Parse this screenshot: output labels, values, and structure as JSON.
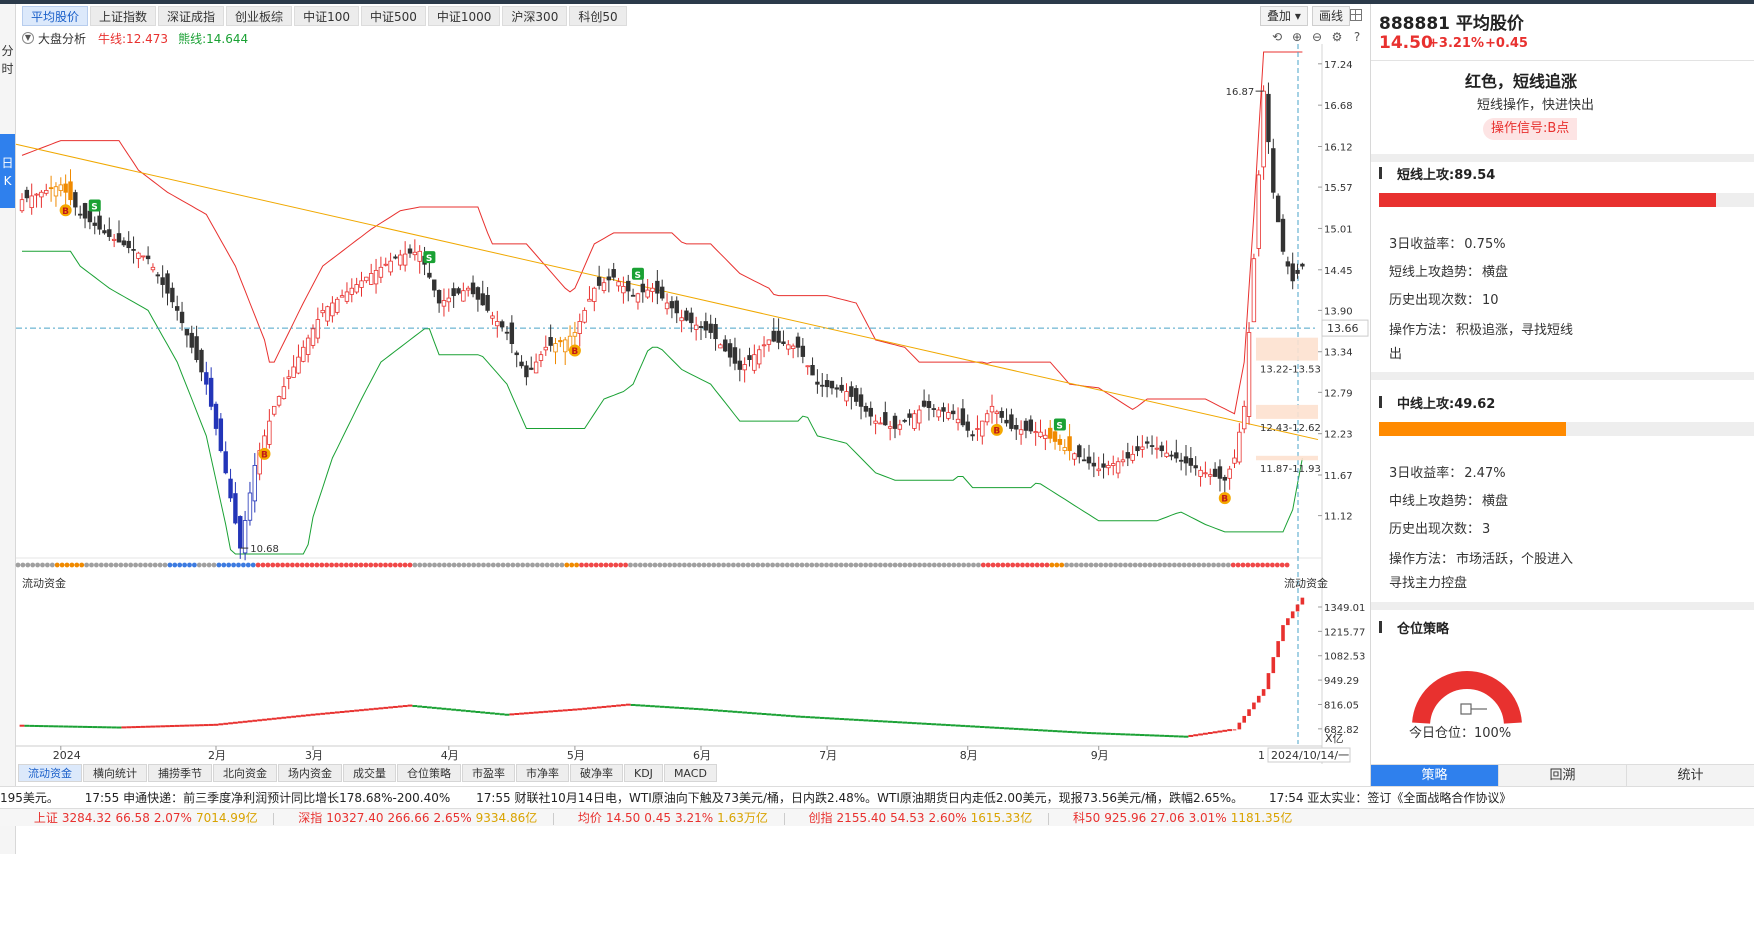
{
  "left_strip": {
    "minute_label": "分时",
    "daily_label": "日K"
  },
  "tabs": [
    "平均股价",
    "上证指数",
    "深证成指",
    "创业板综",
    "中证100",
    "中证500",
    "中证1000",
    "沪深300",
    "科创50"
  ],
  "toolbar": {
    "overlay_label": "叠加",
    "draw_label": "画线"
  },
  "indicator": {
    "name": "大盘分析",
    "bull_line": "牛线:12.473",
    "bear_line": "熊线:14.644"
  },
  "price_axis": [
    "17.24",
    "16.68",
    "16.12",
    "15.57",
    "15.01",
    "14.45",
    "13.90",
    "13.34",
    "12.79",
    "12.23",
    "11.67",
    "11.12"
  ],
  "current_price_tag": "13.66",
  "annotations": {
    "high_label": "16.87",
    "low_label": "10.68",
    "zone_top": "13.22-13.53",
    "zone_mid": "12.43-12.62",
    "zone_low": "11.87-11.93"
  },
  "flow_panel": {
    "title": "流动资金",
    "right_title": "流动资金",
    "axis": [
      "1349.01",
      "1215.77",
      "1082.53",
      "949.29",
      "816.05",
      "682.82"
    ],
    "unit": "X亿"
  },
  "date_axis": [
    "2024",
    "2月",
    "3月",
    "4月",
    "5月",
    "6月",
    "7月",
    "8月",
    "9月"
  ],
  "date_axis_right": [
    "1",
    "2024/10/14/一"
  ],
  "bottom_tabs": [
    "流动资金",
    "横向统计",
    "捕捞季节",
    "北向资金",
    "场内资金",
    "成交量",
    "仓位策略",
    "市盈率",
    "市净率",
    "破净率",
    "KDJ",
    "MACD"
  ],
  "news": [
    "195美元。",
    "17:55 申通快递：前三季度净利润预计同比增长178.68%-200.40%",
    "17:55 财联社10月14日电，WTI原油向下触及73美元/桶，日内跌2.48%。WTI原油期货日内走低2.00美元，现报73.56美元/桶，跌幅2.65%。",
    "17:54 亚太实业：签订《全面战略合作协议》"
  ],
  "quotes": [
    {
      "name": "上证",
      "price": "3284.32",
      "chg": "66.58",
      "pct": "2.07%",
      "amount": "7014.99亿"
    },
    {
      "name": "深指",
      "price": "10327.40",
      "chg": "266.66",
      "pct": "2.65%",
      "amount": "9334.86亿"
    },
    {
      "name": "均价",
      "price": "14.50",
      "chg": "0.45",
      "pct": "3.21%",
      "amount": "1.63万亿"
    },
    {
      "name": "创指",
      "price": "2155.40",
      "chg": "54.53",
      "pct": "2.60%",
      "amount": "1615.33亿"
    },
    {
      "name": "科50",
      "price": "925.96",
      "chg": "27.06",
      "pct": "3.01%",
      "amount": "1181.35亿"
    }
  ],
  "right_panel": {
    "code_name": "888881 平均股价",
    "price": "14.50",
    "pct": "+3.21%",
    "change": "+0.45",
    "headline": "红色，短线追涨",
    "subline": "短线操作，快进快出",
    "signal": "操作信号:B点",
    "short": {
      "title": "短线上攻:89.54",
      "score": 89.54,
      "bar_color": "#e8312f",
      "return3d_label": "3日收益率：",
      "return3d": "0.75%",
      "trend_label": "短线上攻趋势：",
      "trend": "横盘",
      "count_label": "历史出现次数：",
      "count": "10",
      "method_label": "操作方法：",
      "method_1": "积极追涨，寻找短线",
      "method_2": "出"
    },
    "mid": {
      "title": "中线上攻:49.62",
      "score": 49.62,
      "bar_color": "#ff8a00",
      "return3d_label": "3日收益率：",
      "return3d": "2.47%",
      "trend_label": "中线上攻趋势：",
      "trend": "横盘",
      "count_label": "历史出现次数：",
      "count": "3",
      "method_label": "操作方法：",
      "method_1": "市场活跃，个股进入",
      "method_2": "寻找主力控盘"
    },
    "position": {
      "title": "仓位策略",
      "label": "今日仓位：",
      "value": "100%",
      "level": 1.0
    },
    "tabs": [
      "策略",
      "回溯",
      "统计"
    ]
  },
  "colors": {
    "up": "#e8312f",
    "down": "#333333",
    "bull_line": "#1aa134",
    "bear_line": "#e8312f",
    "trendline": "#f0a800",
    "accent": "#2f80ed"
  },
  "chart_data": {
    "type": "candlestick",
    "price_range": [
      10.6,
      17.4
    ],
    "price_ticks": [
      17.24,
      16.68,
      16.12,
      15.57,
      15.01,
      14.45,
      13.9,
      13.34,
      12.79,
      12.23,
      11.67,
      11.12
    ],
    "last_price": 13.66,
    "high": 16.87,
    "low": 10.68,
    "anchors": [
      [
        0,
        15.4
      ],
      [
        8,
        15.6
      ],
      [
        12,
        15.2
      ],
      [
        18,
        14.9
      ],
      [
        26,
        14.6
      ],
      [
        32,
        13.9
      ],
      [
        38,
        12.9
      ],
      [
        42,
        11.7
      ],
      [
        45,
        10.68
      ],
      [
        48,
        11.8
      ],
      [
        52,
        12.6
      ],
      [
        58,
        13.4
      ],
      [
        62,
        13.9
      ],
      [
        66,
        14.1
      ],
      [
        72,
        14.4
      ],
      [
        78,
        14.65
      ],
      [
        82,
        14.7
      ],
      [
        86,
        14.0
      ],
      [
        92,
        14.2
      ],
      [
        96,
        13.9
      ],
      [
        100,
        13.6
      ],
      [
        104,
        13.0
      ],
      [
        108,
        13.4
      ],
      [
        112,
        13.5
      ],
      [
        114,
        13.6
      ],
      [
        118,
        14.2
      ],
      [
        122,
        14.35
      ],
      [
        126,
        14.1
      ],
      [
        130,
        14.2
      ],
      [
        136,
        13.8
      ],
      [
        142,
        13.6
      ],
      [
        148,
        13.1
      ],
      [
        154,
        13.5
      ],
      [
        160,
        13.4
      ],
      [
        164,
        12.9
      ],
      [
        170,
        12.8
      ],
      [
        176,
        12.4
      ],
      [
        180,
        12.3
      ],
      [
        186,
        12.6
      ],
      [
        192,
        12.5
      ],
      [
        196,
        12.2
      ],
      [
        200,
        12.6
      ],
      [
        204,
        12.3
      ],
      [
        210,
        12.25
      ],
      [
        216,
        12.0
      ],
      [
        222,
        11.75
      ],
      [
        228,
        11.9
      ],
      [
        232,
        12.1
      ],
      [
        238,
        11.9
      ],
      [
        244,
        11.7
      ],
      [
        248,
        11.6
      ],
      [
        250,
        11.9
      ],
      [
        252,
        12.6
      ],
      [
        254,
        14.6
      ],
      [
        256,
        16.87
      ],
      [
        258,
        15.5
      ],
      [
        260,
        14.7
      ],
      [
        262,
        14.3
      ],
      [
        264,
        14.5
      ]
    ],
    "markers": [
      {
        "label": "B",
        "index": 9
      },
      {
        "label": "S",
        "index": 15
      },
      {
        "label": "B",
        "index": 50
      },
      {
        "label": "S",
        "index": 84
      },
      {
        "label": "B",
        "index": 114
      },
      {
        "label": "S",
        "index": 127
      },
      {
        "label": "B",
        "index": 201
      },
      {
        "label": "S",
        "index": 214
      },
      {
        "label": "B",
        "index": 248
      }
    ],
    "flow": {
      "range": [
        600,
        1420
      ],
      "ticks": [
        1349.01,
        1215.77,
        1082.53,
        949.29,
        816.05,
        682.82
      ],
      "anchors": [
        [
          0,
          700
        ],
        [
          20,
          690
        ],
        [
          40,
          705
        ],
        [
          60,
          760
        ],
        [
          80,
          810
        ],
        [
          100,
          760
        ],
        [
          115,
          790
        ],
        [
          125,
          815
        ],
        [
          140,
          790
        ],
        [
          160,
          750
        ],
        [
          180,
          720
        ],
        [
          200,
          690
        ],
        [
          220,
          660
        ],
        [
          240,
          640
        ],
        [
          250,
          680
        ],
        [
          256,
          900
        ],
        [
          260,
          1250
        ],
        [
          264,
          1400
        ]
      ]
    },
    "date_ticks": [
      {
        "label": "2024",
        "index": 8
      },
      {
        "label": "2月",
        "index": 40
      },
      {
        "label": "3月",
        "index": 60
      },
      {
        "label": "4月",
        "index": 88
      },
      {
        "label": "5月",
        "index": 114
      },
      {
        "label": "6月",
        "index": 140
      },
      {
        "label": "7月",
        "index": 166
      },
      {
        "label": "8月",
        "index": 195
      },
      {
        "label": "9月",
        "index": 222
      }
    ]
  }
}
